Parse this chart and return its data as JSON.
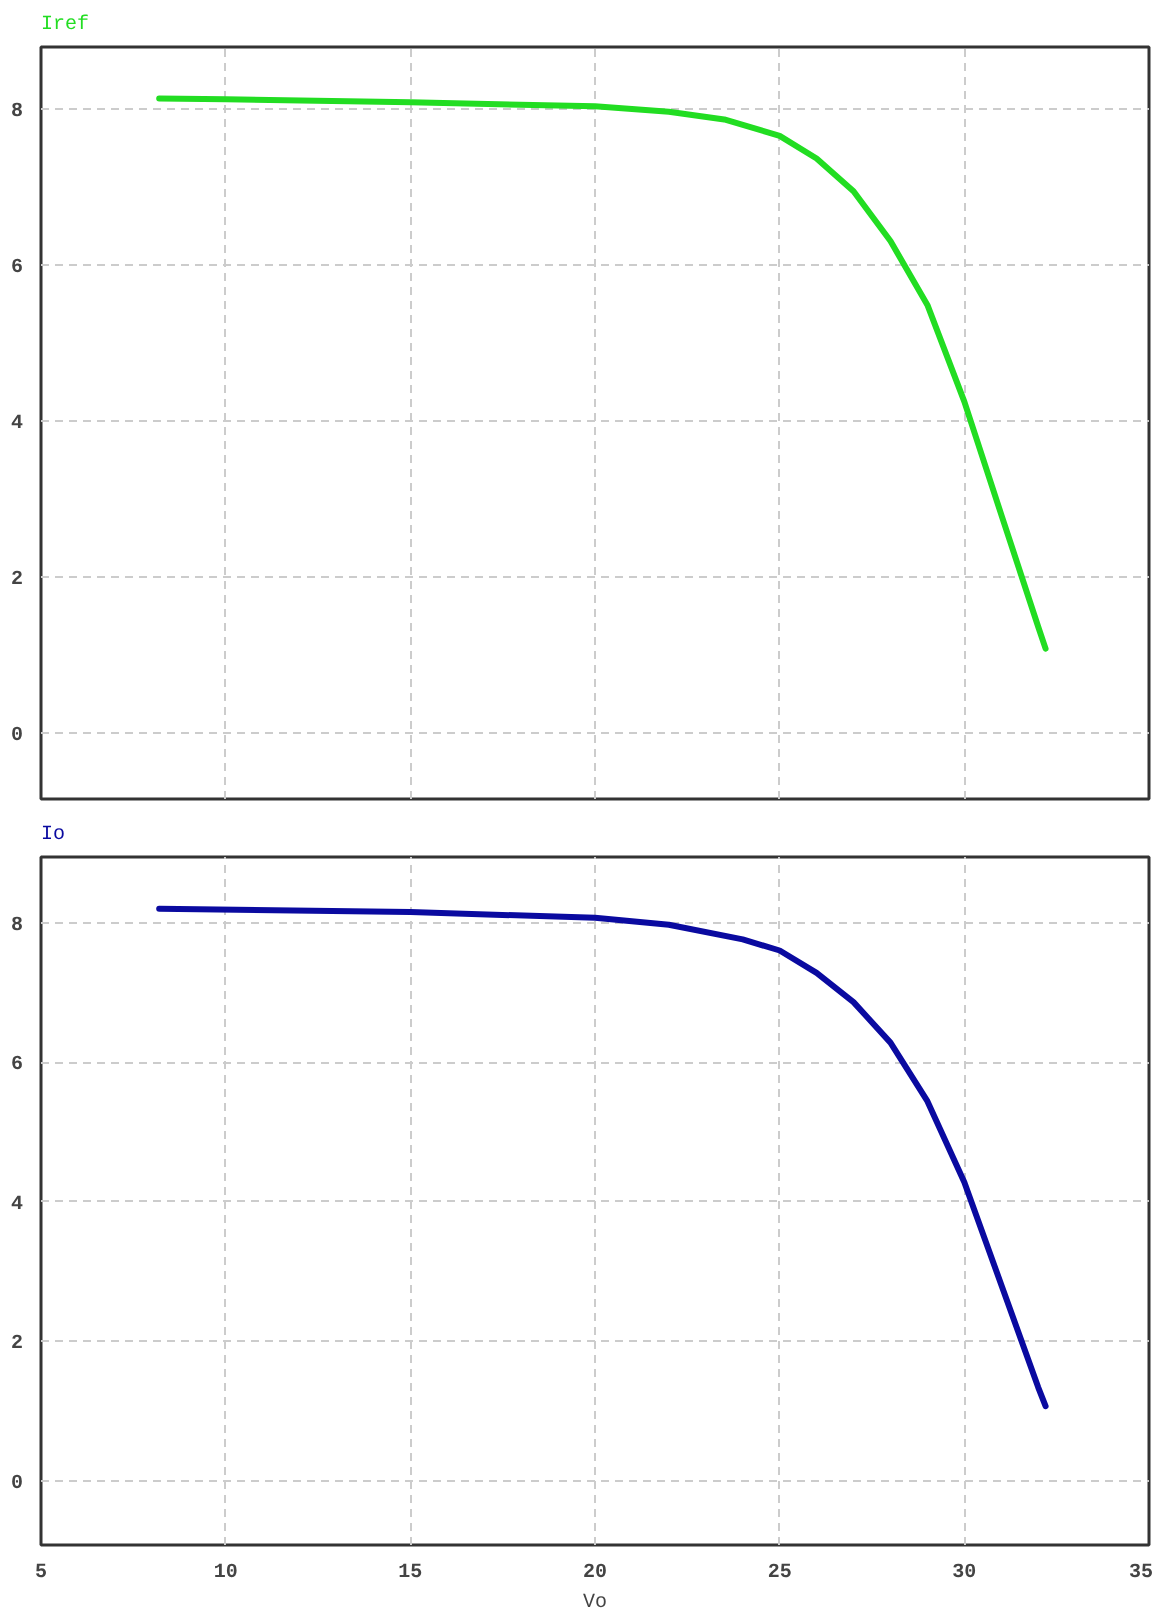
{
  "chart_data": [
    {
      "type": "line",
      "title": "Iref",
      "tick_labels": "y",
      "grid": true,
      "xlim": [
        5,
        35
      ],
      "xticks": [
        5,
        10,
        15,
        20,
        25,
        30,
        35
      ],
      "ylim": [
        -0.85,
        8.8
      ],
      "yticks": [
        0,
        2,
        4,
        6,
        8
      ],
      "series": [
        {
          "color": "#22dd22",
          "x": [
            8.2,
            10,
            15,
            20,
            22,
            23.5,
            25,
            26,
            27,
            28,
            29,
            30,
            31,
            32,
            32.2
          ],
          "values": [
            8.14,
            8.13,
            8.09,
            8.04,
            7.97,
            7.87,
            7.66,
            7.37,
            6.95,
            6.31,
            5.49,
            4.25,
            2.8,
            1.36,
            1.08
          ]
        }
      ]
    },
    {
      "type": "line",
      "title": "Io",
      "xlabel": "Vo",
      "grid": true,
      "xlim": [
        5,
        35
      ],
      "xticks": [
        5,
        10,
        15,
        20,
        25,
        30,
        35
      ],
      "ylim": [
        -0.92,
        8.94
      ],
      "yticks": [
        0,
        2,
        4,
        6,
        8
      ],
      "series": [
        {
          "color": "#0a0aa0",
          "x": [
            8.2,
            15,
            20,
            22,
            24,
            25,
            26,
            27,
            28,
            29,
            30,
            31,
            32,
            32.2
          ],
          "values": [
            8.2,
            8.15,
            8.07,
            7.97,
            7.76,
            7.6,
            7.28,
            6.86,
            6.28,
            5.44,
            4.28,
            2.81,
            1.34,
            1.07
          ]
        }
      ]
    }
  ]
}
